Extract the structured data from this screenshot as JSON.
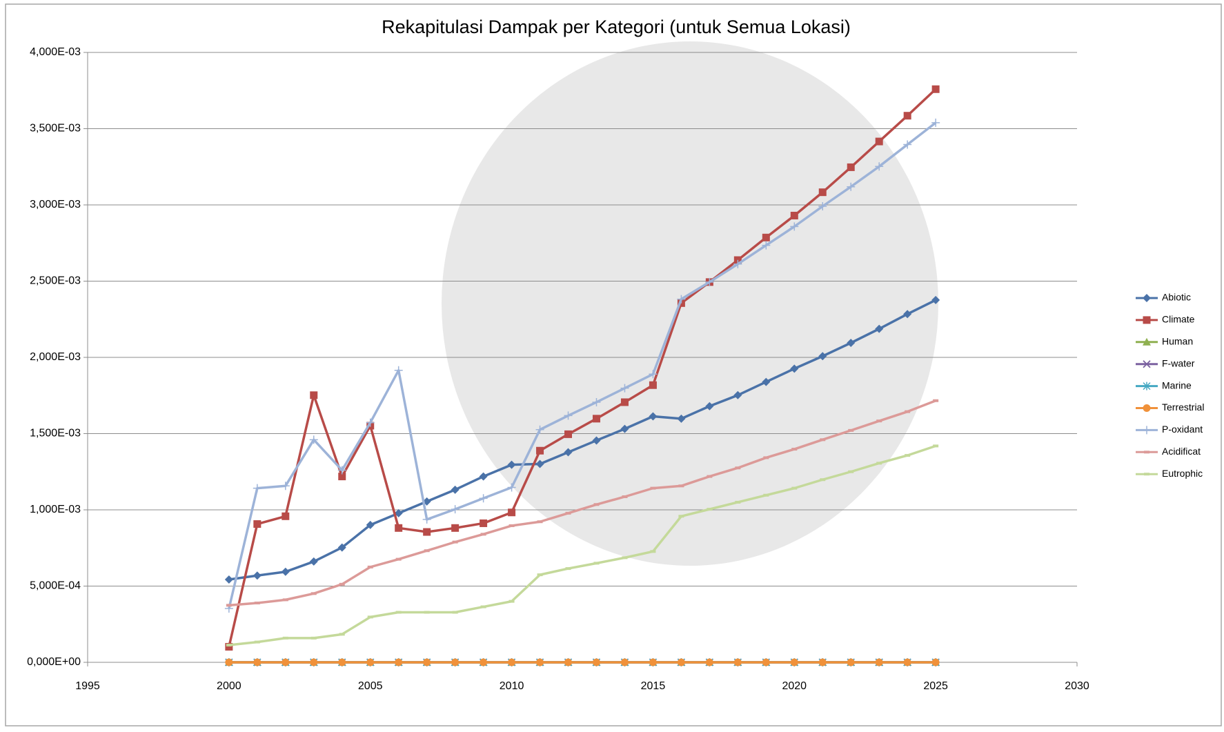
{
  "chart_data": {
    "type": "line",
    "title": "Rekapitulasi Dampak per Kategori (untuk Semua Lokasi)",
    "x": [
      2000,
      2001,
      2002,
      2003,
      2004,
      2005,
      2006,
      2007,
      2008,
      2009,
      2010,
      2011,
      2012,
      2013,
      2014,
      2015,
      2016,
      2017,
      2018,
      2019,
      2020,
      2021,
      2022,
      2023,
      2024,
      2025
    ],
    "xlim": [
      1995,
      2030
    ],
    "xticks": [
      1995,
      2000,
      2005,
      2010,
      2015,
      2020,
      2025,
      2030
    ],
    "ylim": [
      0,
      0.004
    ],
    "yticks": [
      {
        "value": 0,
        "label": "0,000E+00"
      },
      {
        "value": 0.0005,
        "label": "5,000E-04"
      },
      {
        "value": 0.001,
        "label": "1,000E-03"
      },
      {
        "value": 0.0015,
        "label": "1,500E-03"
      },
      {
        "value": 0.002,
        "label": "2,000E-03"
      },
      {
        "value": 0.0025,
        "label": "2,500E-03"
      },
      {
        "value": 0.003,
        "label": "3,000E-03"
      },
      {
        "value": 0.0035,
        "label": "3,500E-03"
      },
      {
        "value": 0.004,
        "label": "4,000E-03"
      }
    ],
    "grid": true,
    "legend": "right",
    "series": [
      {
        "name": "Abiotic",
        "color": "#4a72a8",
        "marker": "diamond",
        "values": [
          0.000543,
          0.000569,
          0.000594,
          0.000661,
          0.000753,
          0.000901,
          0.000978,
          0.001055,
          0.001132,
          0.001219,
          0.001296,
          0.001301,
          0.001378,
          0.001455,
          0.001531,
          0.001613,
          0.001598,
          0.00168,
          0.001752,
          0.001839,
          0.001926,
          0.002008,
          0.002095,
          0.002187,
          0.002284,
          0.002376
        ]
      },
      {
        "name": "Climate",
        "color": "#b84b48",
        "marker": "square",
        "values": [
          0.000102,
          0.000907,
          0.000958,
          0.001752,
          0.001219,
          0.001552,
          0.000881,
          0.000855,
          0.000881,
          0.000912,
          0.000983,
          0.001388,
          0.001496,
          0.001598,
          0.001706,
          0.001818,
          0.002356,
          0.002494,
          0.002638,
          0.002786,
          0.00293,
          0.003083,
          0.003247,
          0.003416,
          0.003585,
          0.003759
        ]
      },
      {
        "name": "Human",
        "color": "#8fb050",
        "marker": "triangle",
        "values": [
          0,
          0,
          0,
          0,
          0,
          0,
          0,
          0,
          0,
          0,
          0,
          0,
          0,
          0,
          0,
          0,
          0,
          0,
          0,
          0,
          0,
          0,
          0,
          0,
          0,
          0
        ]
      },
      {
        "name": "F-water",
        "color": "#7b61a0",
        "marker": "x",
        "values": [
          0,
          0,
          0,
          0,
          0,
          0,
          0,
          0,
          0,
          0,
          0,
          0,
          0,
          0,
          0,
          0,
          0,
          0,
          0,
          0,
          0,
          0,
          0,
          0,
          0,
          0
        ]
      },
      {
        "name": "Marine",
        "color": "#45a8c2",
        "marker": "asterisk",
        "values": [
          0,
          0,
          0,
          0,
          0,
          0,
          0,
          0,
          0,
          0,
          0,
          0,
          0,
          0,
          0,
          0,
          0,
          0,
          0,
          0,
          0,
          0,
          0,
          0,
          0,
          0
        ]
      },
      {
        "name": "Terrestrial",
        "color": "#f0913a",
        "marker": "circle",
        "values": [
          0,
          0,
          0,
          0,
          0,
          0,
          0,
          0,
          0,
          0,
          0,
          0,
          0,
          0,
          0,
          0,
          0,
          0,
          0,
          0,
          0,
          0,
          0,
          0,
          0,
          0
        ]
      },
      {
        "name": "P-oxidant",
        "color": "#9db3d8",
        "marker": "plus",
        "values": [
          0.000353,
          0.001142,
          0.001157,
          0.00146,
          0.00126,
          0.001572,
          0.001915,
          0.000937,
          0.001004,
          0.001076,
          0.001147,
          0.001526,
          0.001618,
          0.001706,
          0.001798,
          0.00189,
          0.002382,
          0.002494,
          0.002612,
          0.002735,
          0.002858,
          0.002991,
          0.003119,
          0.003252,
          0.003396,
          0.003539
        ]
      },
      {
        "name": "Acidificat",
        "color": "#dc9a98",
        "marker": "dash",
        "values": [
          0.000374,
          0.000389,
          0.00041,
          0.000451,
          0.000512,
          0.000625,
          0.000676,
          0.000732,
          0.000789,
          0.00084,
          0.000896,
          0.000922,
          0.000978,
          0.001035,
          0.001086,
          0.001142,
          0.001157,
          0.001219,
          0.001275,
          0.001342,
          0.001398,
          0.00146,
          0.001521,
          0.001583,
          0.001644,
          0.001716
        ]
      },
      {
        "name": "Eutrophic",
        "color": "#c4d99a",
        "marker": "dash",
        "values": [
          0.000113,
          0.000133,
          0.000159,
          0.000159,
          0.000184,
          0.000297,
          0.000328,
          0.000328,
          0.000328,
          0.000364,
          0.0004,
          0.000574,
          0.000615,
          0.00065,
          0.000686,
          0.000727,
          0.000958,
          0.001004,
          0.00105,
          0.001096,
          0.001142,
          0.001198,
          0.00125,
          0.001306,
          0.001357,
          0.001419
        ]
      }
    ]
  }
}
